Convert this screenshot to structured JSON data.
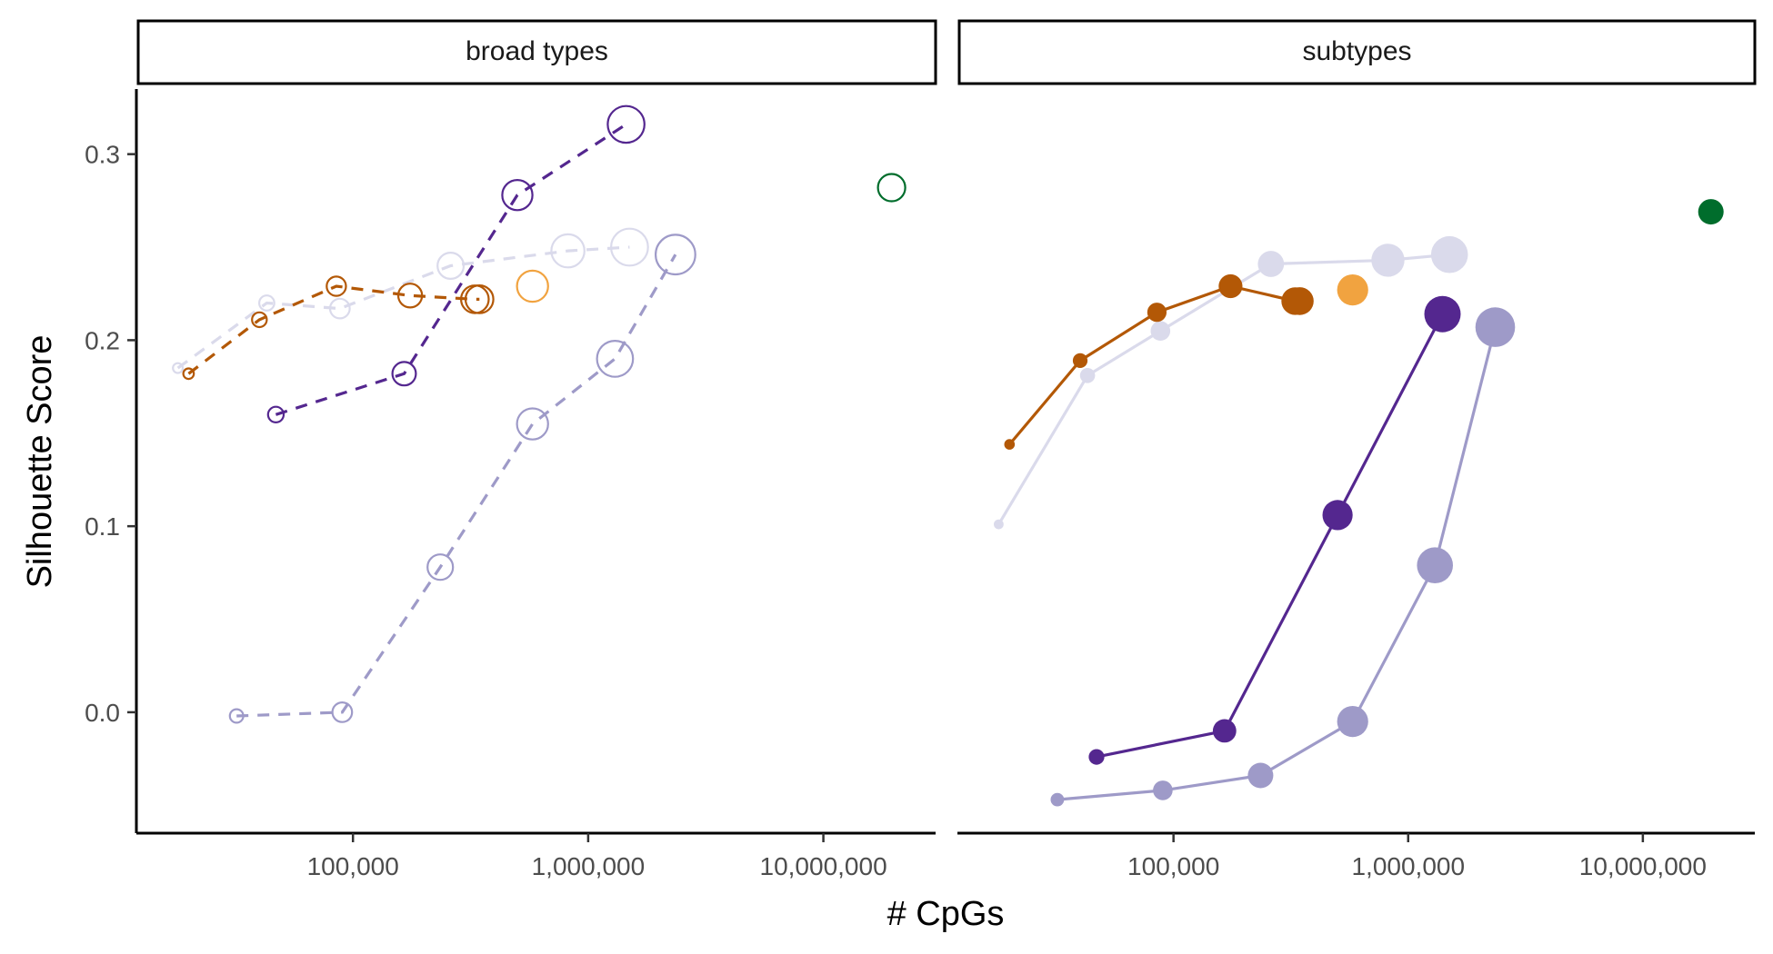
{
  "chart_data": {
    "type": "line",
    "xlabel": "# CpGs",
    "ylabel": "Silhouette Score",
    "xscale": "log10",
    "xlim": [
      12000,
      30000000
    ],
    "ylim": [
      -0.065,
      0.335
    ],
    "grid": false,
    "legend": "none",
    "x_ticks": [
      {
        "value": 100000,
        "label": "100,000"
      },
      {
        "value": 1000000,
        "label": "1,000,000"
      },
      {
        "value": 10000000,
        "label": "10,000,000"
      }
    ],
    "y_ticks": [
      {
        "value": 0.0,
        "label": "0.0"
      },
      {
        "value": 0.1,
        "label": "0.1"
      },
      {
        "value": 0.2,
        "label": "0.2"
      },
      {
        "value": 0.3,
        "label": "0.3"
      }
    ],
    "colors": {
      "dark_purple": "#54278f",
      "mid_purple": "#9e9ac8",
      "light_lavender": "#dadaeb",
      "dark_orange": "#b35806",
      "light_orange": "#f1a340",
      "green": "#006d2c"
    },
    "panels": [
      {
        "strip": "broad types",
        "marker": "hollow",
        "line": "dashed",
        "series": [
          {
            "color": "light_lavender",
            "x": [
              18000,
              43000,
              88000,
              260000,
              820000,
              1500000
            ],
            "y": [
              0.185,
              0.22,
              0.217,
              0.24,
              0.248,
              0.25
            ]
          },
          {
            "color": "dark_orange",
            "x": [
              20000,
              40000,
              85000,
              175000,
              330000,
              345000
            ],
            "y": [
              0.182,
              0.211,
              0.229,
              0.224,
              0.222,
              0.222
            ]
          },
          {
            "color": "light_orange",
            "x": [
              580000
            ],
            "y": [
              0.229
            ]
          },
          {
            "color": "dark_purple",
            "x": [
              47000,
              165000,
              500000,
              1450000
            ],
            "y": [
              0.16,
              0.182,
              0.278,
              0.316
            ]
          },
          {
            "color": "mid_purple",
            "x": [
              32000,
              90000,
              235000,
              580000,
              1300000,
              2350000
            ],
            "y": [
              -0.002,
              0.0,
              0.078,
              0.155,
              0.19,
              0.246
            ]
          },
          {
            "color": "green",
            "x": [
              19500000
            ],
            "y": [
              0.282
            ]
          }
        ]
      },
      {
        "strip": "subtypes",
        "marker": "filled",
        "line": "solid",
        "series": [
          {
            "color": "light_lavender",
            "x": [
              18000,
              43000,
              88000,
              260000,
              820000,
              1500000
            ],
            "y": [
              0.101,
              0.181,
              0.205,
              0.241,
              0.243,
              0.246
            ]
          },
          {
            "color": "dark_orange",
            "x": [
              20000,
              40000,
              85000,
              175000,
              330000,
              345000
            ],
            "y": [
              0.144,
              0.189,
              0.215,
              0.229,
              0.221,
              0.221
            ]
          },
          {
            "color": "light_orange",
            "x": [
              580000
            ],
            "y": [
              0.227
            ]
          },
          {
            "color": "dark_purple",
            "x": [
              47000,
              165000,
              500000,
              1400000
            ],
            "y": [
              -0.024,
              -0.01,
              0.106,
              0.214
            ]
          },
          {
            "color": "mid_purple",
            "x": [
              32000,
              90000,
              235000,
              580000,
              1300000,
              2350000
            ],
            "y": [
              -0.047,
              -0.042,
              -0.034,
              -0.005,
              0.079,
              0.207
            ]
          },
          {
            "color": "green",
            "x": [
              19500000
            ],
            "y": [
              0.269
            ]
          }
        ]
      }
    ]
  }
}
